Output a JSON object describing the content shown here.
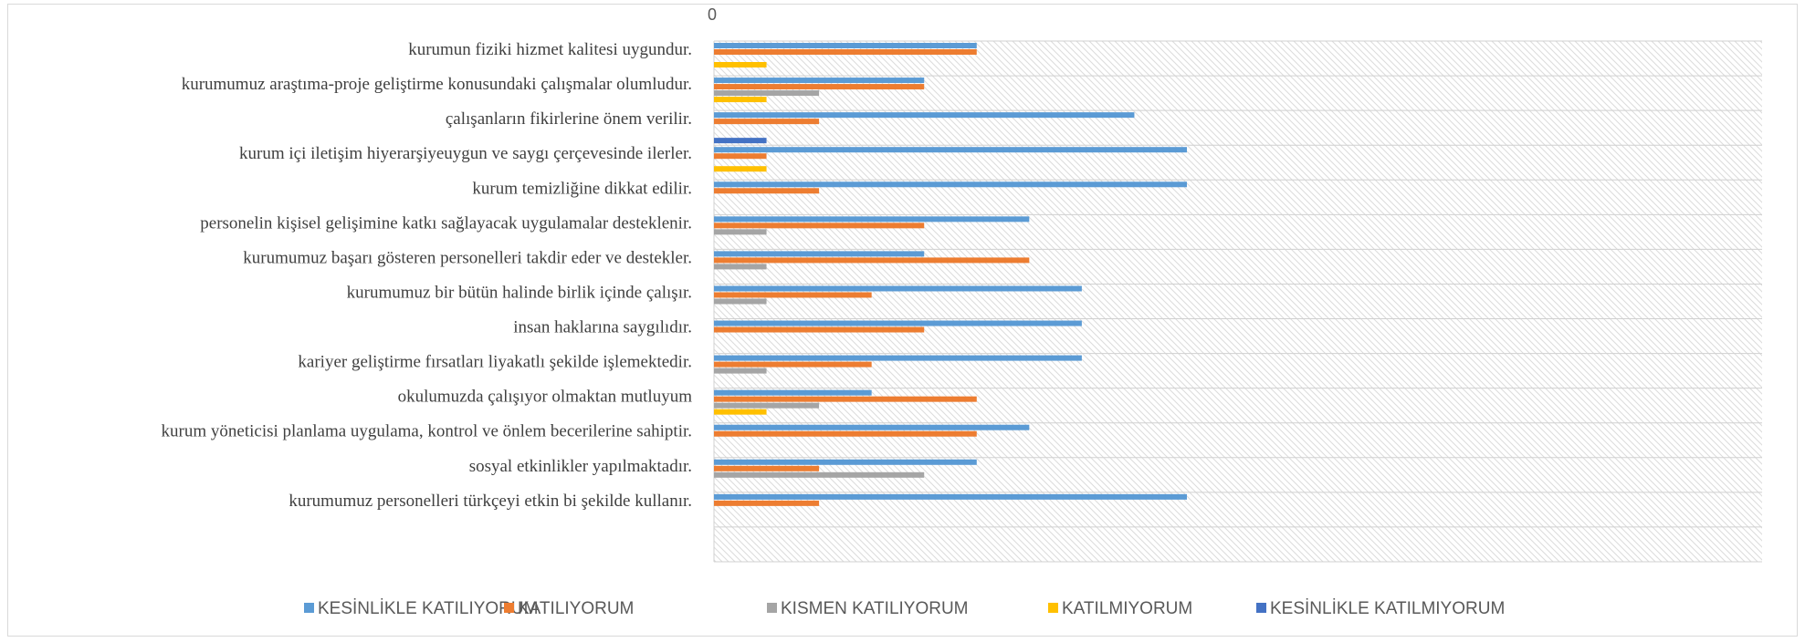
{
  "chart_data": {
    "type": "bar",
    "orientation": "horizontal",
    "title": "",
    "xlabel": "",
    "ylabel": "",
    "xlim": [
      0,
      20
    ],
    "x_tick_labels": [
      "0"
    ],
    "grid": true,
    "legend_position": "bottom",
    "categories": [
      "kurumun fiziki hizmet kalitesi uygundur.",
      "kurumumuz araştıma-proje geliştirme konusundaki çalışmalar olumludur.",
      "çalışanların fikirlerine önem verilir.",
      "kurum içi iletişim hiyerarşiyeuygun ve saygı çerçevesinde ilerler.",
      "kurum temizliğine dikkat edilir.",
      "personelin kişisel gelişimine katkı sağlayacak uygulamalar desteklenir.",
      "kurumumuz başarı gösteren personelleri takdir eder ve destekler.",
      "kurumumuz bir bütün halinde birlik içinde çalışır.",
      "insan haklarına saygılıdır.",
      "kariyer geliştirme fırsatları liyakatlı şekilde işlemektedir.",
      "okulumuzda çalışıyor olmaktan mutluyum",
      "kurum yöneticisi planlama uygulama, kontrol ve önlem becerilerine sahiptir.",
      "sosyal etkinlikler yapılmaktadır.",
      "kurumumuz personelleri türkçeyi etkin bi şekilde kullanır."
    ],
    "series": [
      {
        "name": "KESİNLİKLE KATILIYORUM",
        "color": "#5b9bd5",
        "values": [
          5,
          4,
          8,
          9,
          9,
          6,
          4,
          7,
          7,
          7,
          3,
          6,
          5,
          9
        ]
      },
      {
        "name": "KATILIYORUM",
        "color": "#ed7d31",
        "values": [
          5,
          4,
          2,
          1,
          2,
          4,
          6,
          3,
          4,
          3,
          5,
          5,
          2,
          2
        ]
      },
      {
        "name": "KISMEN KATILIYORUM",
        "color": "#a5a5a5",
        "values": [
          0,
          2,
          0,
          0,
          0,
          1,
          1,
          1,
          0,
          1,
          2,
          0,
          4,
          0
        ]
      },
      {
        "name": "KATILMIYORUM",
        "color": "#ffc000",
        "values": [
          1,
          1,
          0,
          1,
          0,
          0,
          0,
          0,
          0,
          0,
          1,
          0,
          0,
          0
        ]
      },
      {
        "name": "KESİNLİKLE KATILMIYORUM",
        "color": "#4472c4",
        "values": [
          0,
          0,
          1,
          0,
          0,
          0,
          0,
          0,
          0,
          0,
          0,
          0,
          0,
          0
        ]
      }
    ]
  }
}
